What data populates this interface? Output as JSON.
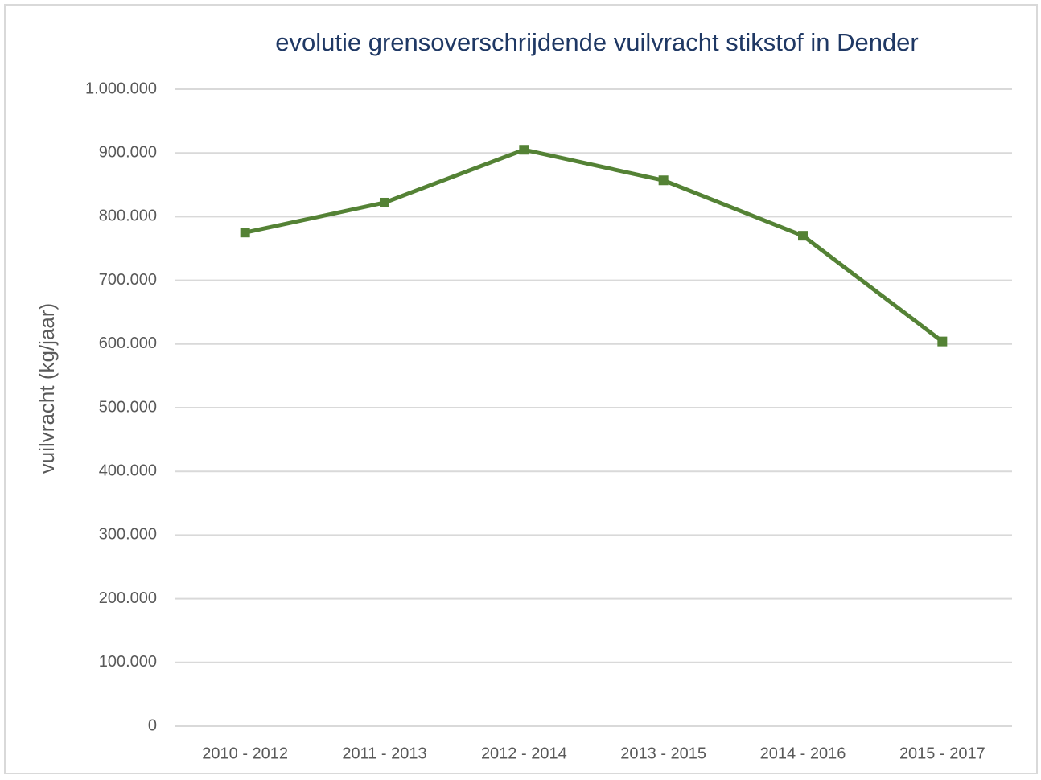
{
  "chart_data": {
    "type": "line",
    "title": "evolutie grensoverschrijdende  vuilvracht stikstof  in  Dender",
    "y_label": "vuilvracht (kg/jaar)",
    "categories": [
      "2010 - 2012",
      "2011 - 2013",
      "2012 - 2014",
      "2013 - 2015",
      "2014 - 2016",
      "2015 - 2017"
    ],
    "series": [
      {
        "name": "vuilvracht stikstof",
        "color": "#548235",
        "values": [
          775000,
          822000,
          905000,
          857000,
          770000,
          604000
        ]
      }
    ],
    "ylim": [
      0,
      1000000
    ],
    "yticks": [
      0,
      {
        "value": 100000,
        "label": "100.000"
      },
      {
        "value": 200000,
        "label": "200.000"
      },
      {
        "value": 300000,
        "label": "300.000"
      },
      {
        "value": 400000,
        "label": "400.000"
      },
      {
        "value": 500000,
        "label": "500.000"
      },
      {
        "value": 600000,
        "label": "600.000"
      },
      {
        "value": 700000,
        "label": "700.000"
      },
      {
        "value": 800000,
        "label": "800.000"
      },
      {
        "value": 900000,
        "label": "900.000"
      },
      {
        "value": 1000000,
        "label": "1.000.000"
      }
    ],
    "grid": true,
    "legend": false
  }
}
